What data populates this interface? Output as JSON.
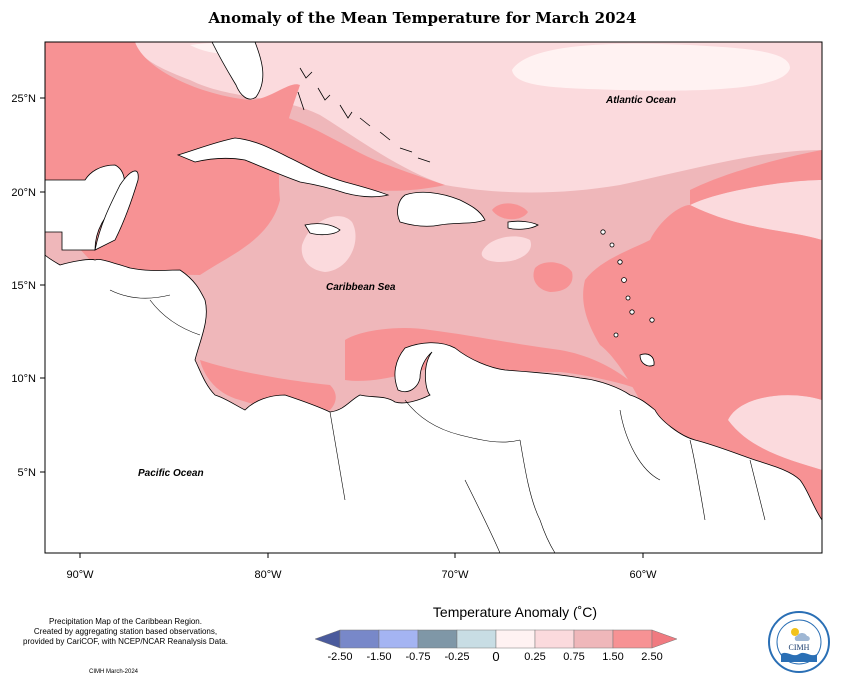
{
  "title": "Anomaly of the Mean Temperature for March 2024",
  "axes": {
    "lat_labels": [
      "25°N",
      "20°N",
      "15°N",
      "10°N",
      "5°N"
    ],
    "lon_labels": [
      "90°W",
      "80°W",
      "70°W",
      "60°W"
    ]
  },
  "map_labels": {
    "atlantic": "Atlantic Ocean",
    "caribbean": "Caribbean Sea",
    "pacific": "Pacific Ocean"
  },
  "legend": {
    "title": "Temperature Anomaly (˚C)",
    "colors": [
      "#4a5a9c",
      "#7888c9",
      "#a4b4f2",
      "#7f97a7",
      "#c8dde4",
      "#fff2f2",
      "#fbdadd",
      "#efb7ba",
      "#f79294",
      "#f07a80"
    ],
    "tick_labels": [
      "-2.50",
      "-1.50",
      "-0.75",
      "-0.25",
      "0",
      "0.25",
      "0.75",
      "1.50",
      "2.50"
    ]
  },
  "anomaly_colors": {
    "c150_250": "#f79294",
    "c075_150": "#efb7ba",
    "c025_075": "#fbdadd",
    "c000_025": "#fff2f2",
    "land": "#ffffff"
  },
  "credit": {
    "line1": "Precipitation Map of the Caribbean Region.",
    "line2": "Created by aggregating station based observations,",
    "line3": "provided by CariCOF, with NCEP/NCAR Reanalysis Data.",
    "stamp": "CIMH March-2024"
  },
  "logo": {
    "text": "CIMH",
    "icon": "cimh-logo-icon"
  }
}
